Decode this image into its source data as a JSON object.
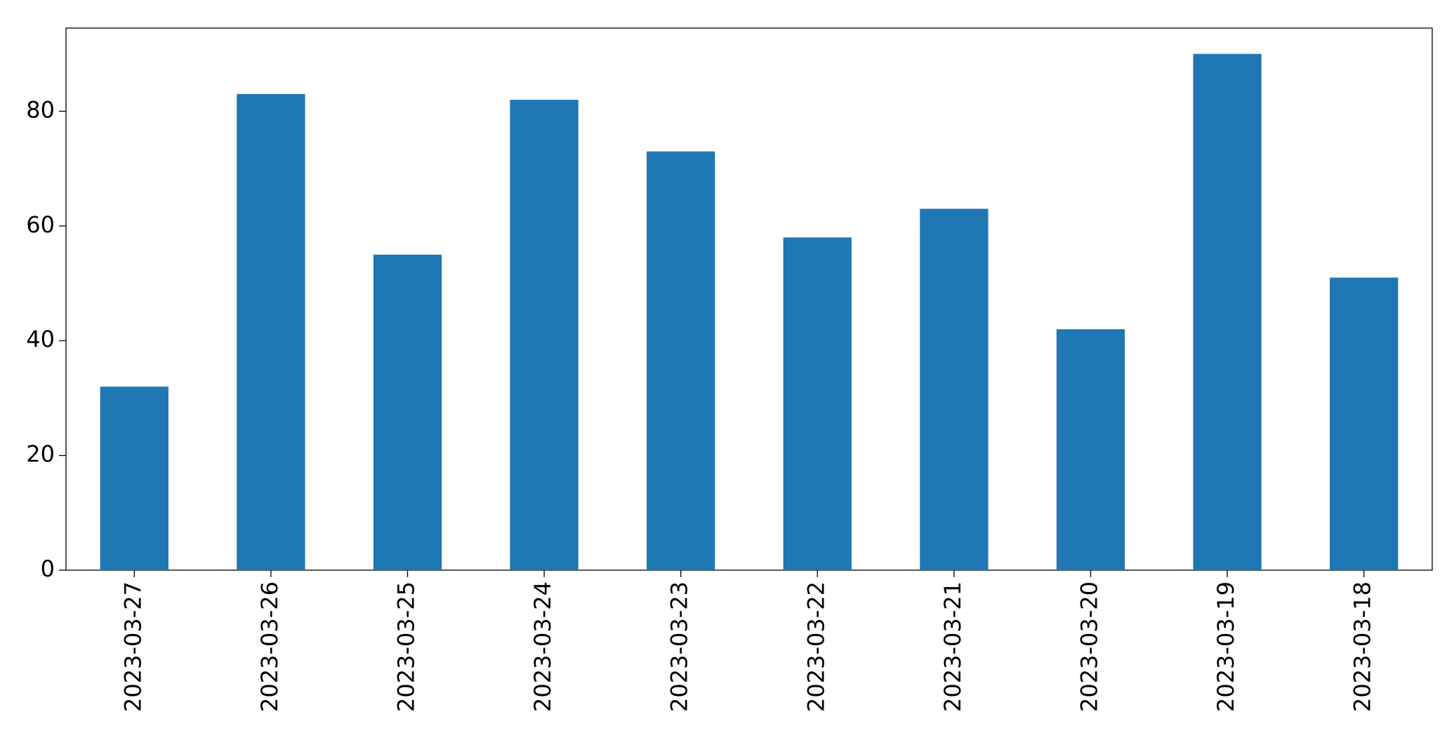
{
  "chart_data": {
    "type": "bar",
    "categories": [
      "2023-03-27",
      "2023-03-26",
      "2023-03-25",
      "2023-03-24",
      "2023-03-23",
      "2023-03-22",
      "2023-03-21",
      "2023-03-20",
      "2023-03-19",
      "2023-03-18"
    ],
    "values": [
      32,
      83,
      55,
      82,
      73,
      58,
      63,
      42,
      90,
      51
    ],
    "color": "#1f77b4",
    "ylim": [
      0,
      94.5
    ],
    "yticks": [
      0,
      20,
      40,
      60,
      80
    ],
    "grid": false
  }
}
